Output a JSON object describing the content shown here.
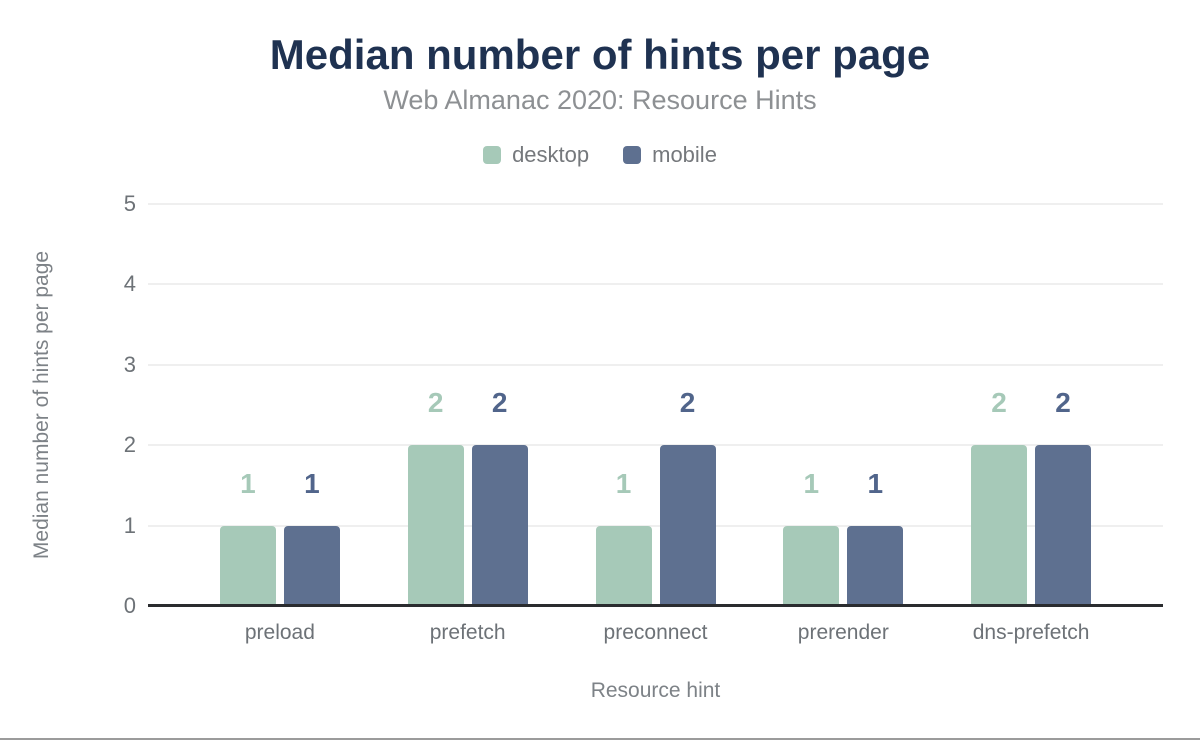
{
  "chart_data": {
    "type": "bar",
    "title": "Median number of hints per page",
    "subtitle": "Web Almanac 2020: Resource Hints",
    "xlabel": "Resource hint",
    "ylabel": "Median number of hints per page",
    "categories": [
      "preload",
      "prefetch",
      "preconnect",
      "prerender",
      "dns-prefetch"
    ],
    "series": [
      {
        "name": "desktop",
        "color": "#a6c9b8",
        "label_color": "#a6c9b8",
        "values": [
          1,
          2,
          1,
          1,
          2
        ]
      },
      {
        "name": "mobile",
        "color": "#5e7090",
        "label_color": "#51658b",
        "values": [
          1,
          2,
          2,
          1,
          2
        ]
      }
    ],
    "ylim": [
      0,
      5
    ],
    "yticks": [
      0,
      1,
      2,
      3,
      4,
      5
    ],
    "grid": true,
    "legend_position": "top",
    "value_labels": true
  },
  "style": {
    "title_color": "#1f3251",
    "subtitle_color": "#8d9093",
    "axis_text_color": "#6d7277",
    "axis_title_color": "#7d8287",
    "gridline_color": "#efefef",
    "axis_line_color": "#2a2c2f",
    "background": "#ffffff",
    "bottom_rule_color": "#9b9b9b"
  }
}
